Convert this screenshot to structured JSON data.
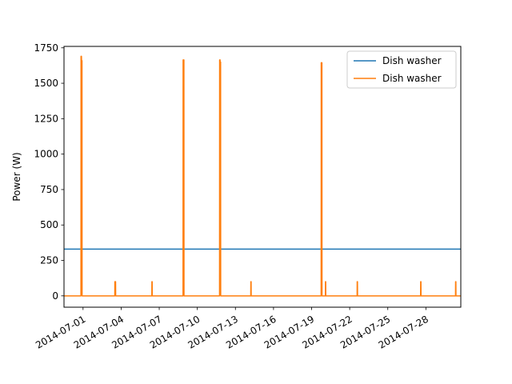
{
  "chart_data": {
    "type": "line",
    "title": "",
    "xlabel": "",
    "ylabel": "Power (W)",
    "xlim": [
      "2014-06-29T12:00",
      "2014-07-30T18:00"
    ],
    "ylim": [
      -80,
      1760
    ],
    "yticks": [
      0,
      250,
      500,
      750,
      1000,
      1250,
      1500,
      1750
    ],
    "xticks": [
      "2014-07-01",
      "2014-07-04",
      "2014-07-07",
      "2014-07-10",
      "2014-07-13",
      "2014-07-16",
      "2014-07-19",
      "2014-07-22",
      "2014-07-25",
      "2014-07-28"
    ],
    "grid": false,
    "legend": {
      "position": "top-right"
    },
    "series": [
      {
        "name": "Dish washer",
        "color": "#1f77b4",
        "x": [
          "2014-06-29T12:00",
          "2014-07-30T18:00"
        ],
        "y": [
          330,
          330
        ]
      },
      {
        "name": "Dish washer",
        "color": "#ff7f0e",
        "x": [
          "2014-06-29T12:00",
          "2014-06-30T20:00",
          "2014-06-30T20:10",
          "2014-06-30T21:00",
          "2014-06-30T21:10",
          "2014-06-30T22:00",
          "2014-06-30T22:10",
          "2014-07-03T12:00",
          "2014-07-03T12:10",
          "2014-07-03T13:30",
          "2014-07-03T13:40",
          "2014-07-06T10:00",
          "2014-07-06T10:10",
          "2014-07-06T10:40",
          "2014-07-06T10:50",
          "2014-07-08T21:00",
          "2014-07-08T21:10",
          "2014-07-08T22:40",
          "2014-07-08T22:50",
          "2014-07-11T18:00",
          "2014-07-11T18:10",
          "2014-07-11T19:00",
          "2014-07-11T19:10",
          "2014-07-11T20:00",
          "2014-07-11T20:10",
          "2014-07-14T05:00",
          "2014-07-14T05:10",
          "2014-07-14T05:40",
          "2014-07-14T05:50",
          "2014-07-19T18:00",
          "2014-07-19T18:10",
          "2014-07-19T19:30",
          "2014-07-19T19:40",
          "2014-07-20T02:00",
          "2014-07-20T02:10",
          "2014-07-20T02:40",
          "2014-07-20T02:50",
          "2014-07-22T14:00",
          "2014-07-22T14:10",
          "2014-07-22T14:40",
          "2014-07-22T14:50",
          "2014-07-27T14:00",
          "2014-07-27T14:10",
          "2014-07-27T14:40",
          "2014-07-27T14:50",
          "2014-07-30T08:00",
          "2014-07-30T08:10",
          "2014-07-30T08:40",
          "2014-07-30T08:50",
          "2014-07-30T18:00"
        ],
        "y": [
          0,
          0,
          1690,
          1690,
          1660,
          1660,
          0,
          0,
          100,
          100,
          0,
          0,
          100,
          100,
          0,
          0,
          1665,
          1665,
          0,
          0,
          1665,
          1665,
          1650,
          1650,
          0,
          0,
          100,
          100,
          0,
          0,
          1645,
          1645,
          0,
          0,
          100,
          100,
          0,
          0,
          100,
          100,
          0,
          0,
          100,
          100,
          0,
          0,
          100,
          100,
          0,
          0
        ]
      }
    ]
  }
}
